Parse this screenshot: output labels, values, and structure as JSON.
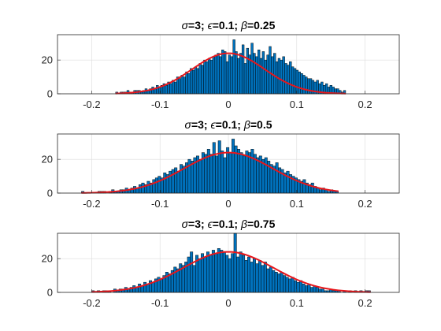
{
  "colors": {
    "bar_fill": "#0072BD",
    "bar_edge": "#000000",
    "fit_line": "#E8161B",
    "grid": "#DCDCDC",
    "axis": "#262626"
  },
  "chart_data": [
    {
      "type": "bar",
      "subtype": "histogram-with-normal-fit",
      "title_parts": {
        "sigma": "σ",
        "p1": "=3; ",
        "eps": "ϵ",
        "p2": "=0.1; ",
        "beta": "β",
        "p3": "=0.25"
      },
      "xlim": [
        -0.25,
        0.25
      ],
      "ylim": [
        0,
        35
      ],
      "xticks": [
        -0.2,
        -0.1,
        0,
        0.1,
        0.2
      ],
      "xtick_labels": [
        "-0.2",
        "-0.1",
        "0",
        "0.1",
        "0.2"
      ],
      "yticks": [
        0,
        20
      ],
      "ytick_labels": [
        "0",
        "20"
      ],
      "grid": true,
      "bin_start": -0.165,
      "bin_width": 0.0033,
      "values": [
        1,
        0,
        1,
        1,
        1,
        2,
        1,
        1,
        2,
        2,
        2,
        1,
        2,
        3,
        2,
        3,
        4,
        3,
        5,
        4,
        5,
        6,
        5,
        7,
        6,
        8,
        7,
        10,
        9,
        11,
        10,
        13,
        12,
        15,
        14,
        16,
        15,
        18,
        17,
        20,
        19,
        21,
        20,
        22,
        23,
        24,
        22,
        26,
        25,
        19,
        23,
        22,
        32,
        25,
        21,
        24,
        29,
        18,
        27,
        23,
        30,
        24,
        22,
        26,
        21,
        25,
        20,
        23,
        28,
        22,
        24,
        19,
        21,
        20,
        22,
        18,
        17,
        19,
        16,
        15,
        14,
        13,
        12,
        11,
        10,
        9,
        9,
        8,
        7,
        8,
        6,
        7,
        5,
        6,
        4,
        5,
        4,
        3,
        3,
        2,
        1,
        2
      ],
      "fit": {
        "type": "normal",
        "mu": 0.0,
        "sigma": 0.053,
        "peak": 24
      }
    },
    {
      "type": "bar",
      "subtype": "histogram-with-normal-fit",
      "title_parts": {
        "sigma": "σ",
        "p1": "=3; ",
        "eps": "ϵ",
        "p2": "=0.1; ",
        "beta": "β",
        "p3": "=0.5"
      },
      "xlim": [
        -0.25,
        0.25
      ],
      "ylim": [
        0,
        35
      ],
      "xticks": [
        -0.2,
        -0.1,
        0,
        0.1,
        0.2
      ],
      "xtick_labels": [
        "-0.2",
        "-0.1",
        "0",
        "0.1",
        "0.2"
      ],
      "yticks": [
        0,
        20
      ],
      "ytick_labels": [
        "0",
        "20"
      ],
      "grid": true,
      "bin_start": -0.215,
      "bin_width": 0.004,
      "values": [
        1,
        0,
        0,
        0,
        0,
        0,
        1,
        1,
        1,
        0,
        1,
        2,
        1,
        1,
        2,
        2,
        3,
        2,
        3,
        4,
        3,
        5,
        6,
        5,
        7,
        6,
        8,
        9,
        10,
        9,
        12,
        11,
        13,
        14,
        15,
        13,
        17,
        16,
        18,
        20,
        19,
        21,
        22,
        20,
        24,
        23,
        26,
        23,
        30,
        22,
        31,
        25,
        21,
        27,
        24,
        32,
        28,
        26,
        24,
        22,
        25,
        24,
        26,
        23,
        21,
        22,
        20,
        21,
        19,
        17,
        16,
        18,
        15,
        14,
        12,
        13,
        11,
        10,
        9,
        8,
        7,
        8,
        6,
        5,
        6,
        4,
        3,
        2,
        3,
        2,
        1,
        2,
        1,
        1
      ],
      "fit": {
        "type": "normal",
        "mu": 0.0,
        "sigma": 0.065,
        "peak": 24
      }
    },
    {
      "type": "bar",
      "subtype": "histogram-with-normal-fit",
      "title_parts": {
        "sigma": "σ",
        "p1": "=3; ",
        "eps": "ϵ",
        "p2": "=0.1; ",
        "beta": "β",
        "p3": "=0.75"
      },
      "xlim": [
        -0.25,
        0.25
      ],
      "ylim": [
        0,
        35
      ],
      "xticks": [
        -0.2,
        -0.1,
        0,
        0.1,
        0.2
      ],
      "xtick_labels": [
        "-0.2",
        "-0.1",
        "0",
        "0.1",
        "0.2"
      ],
      "yticks": [
        0,
        20
      ],
      "ytick_labels": [
        "0",
        "20"
      ],
      "grid": true,
      "bin_start": -0.2,
      "bin_width": 0.004,
      "values": [
        1,
        0,
        1,
        0,
        1,
        1,
        1,
        0,
        2,
        1,
        2,
        2,
        3,
        2,
        3,
        4,
        3,
        5,
        4,
        6,
        5,
        7,
        6,
        8,
        9,
        8,
        10,
        12,
        11,
        13,
        15,
        14,
        17,
        16,
        18,
        21,
        24,
        16,
        22,
        20,
        23,
        21,
        24,
        22,
        25,
        23,
        26,
        25,
        24,
        22,
        20,
        23,
        35,
        21,
        24,
        22,
        19,
        21,
        18,
        20,
        17,
        19,
        16,
        18,
        14,
        15,
        13,
        12,
        11,
        12,
        10,
        9,
        8,
        9,
        7,
        6,
        7,
        5,
        4,
        5,
        3,
        4,
        3,
        2,
        2,
        1,
        1,
        2,
        1,
        1,
        1,
        0,
        1,
        0,
        1,
        0,
        1,
        0,
        1,
        0,
        1,
        1
      ],
      "fit": {
        "type": "normal",
        "mu": 0.0,
        "sigma": 0.066,
        "peak": 24
      }
    }
  ]
}
